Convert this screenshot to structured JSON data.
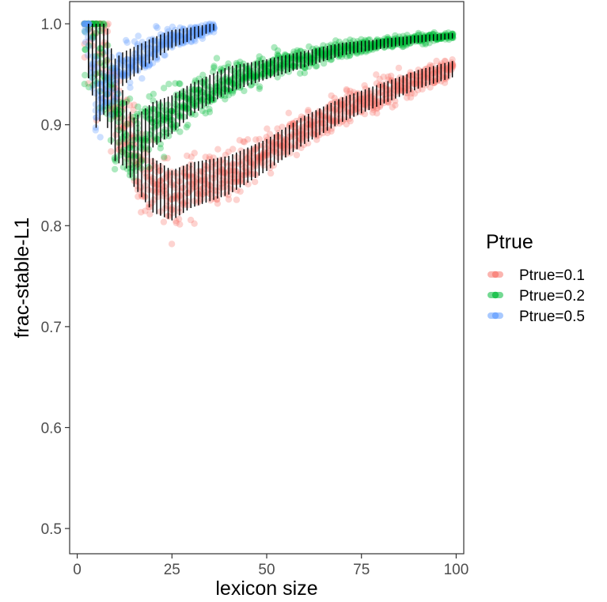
{
  "chart_data": {
    "type": "scatter",
    "xlabel": "lexicon size",
    "ylabel": "frac-stable-L1",
    "xlim": [
      -2,
      102
    ],
    "ylim": [
      0.475,
      1.022
    ],
    "x_ticks": [
      0,
      25,
      50,
      75,
      100
    ],
    "x_tick_labels": [
      "0",
      "25",
      "50",
      "75",
      "100"
    ],
    "y_ticks": [
      0.5,
      0.6,
      0.7,
      0.8,
      0.9,
      1.0
    ],
    "y_tick_labels": [
      "0.5",
      "0.6",
      "0.7",
      "0.8",
      "0.9",
      "1.0"
    ],
    "grid": false,
    "legend": {
      "title": "Ptrue",
      "placement": "right"
    },
    "series": [
      {
        "name": "Ptrue=0.1",
        "color": "#F8766D",
        "x_range": [
          2,
          99
        ],
        "center_points": [
          [
            5,
            1.0
          ],
          [
            10,
            0.92
          ],
          [
            15,
            0.87
          ],
          [
            20,
            0.84
          ],
          [
            25,
            0.83
          ],
          [
            30,
            0.84
          ],
          [
            40,
            0.85
          ],
          [
            50,
            0.87
          ],
          [
            60,
            0.895
          ],
          [
            70,
            0.915
          ],
          [
            80,
            0.93
          ],
          [
            90,
            0.945
          ],
          [
            99,
            0.955
          ]
        ],
        "spread_points": [
          [
            5,
            0.12
          ],
          [
            10,
            0.08
          ],
          [
            15,
            0.07
          ],
          [
            20,
            0.06
          ],
          [
            30,
            0.05
          ],
          [
            50,
            0.035
          ],
          [
            75,
            0.025
          ],
          [
            99,
            0.018
          ]
        ]
      },
      {
        "name": "Ptrue=0.2",
        "color": "#00BA38",
        "x_range": [
          2,
          99
        ],
        "center_points": [
          [
            5,
            1.0
          ],
          [
            10,
            0.9
          ],
          [
            15,
            0.88
          ],
          [
            20,
            0.9
          ],
          [
            25,
            0.91
          ],
          [
            30,
            0.925
          ],
          [
            40,
            0.945
          ],
          [
            50,
            0.955
          ],
          [
            60,
            0.965
          ],
          [
            70,
            0.975
          ],
          [
            80,
            0.98
          ],
          [
            90,
            0.985
          ],
          [
            99,
            0.988
          ]
        ],
        "spread_points": [
          [
            5,
            0.12
          ],
          [
            10,
            0.08
          ],
          [
            15,
            0.06
          ],
          [
            20,
            0.05
          ],
          [
            30,
            0.035
          ],
          [
            50,
            0.022
          ],
          [
            75,
            0.012
          ],
          [
            99,
            0.006
          ]
        ]
      },
      {
        "name": "Ptrue=0.5",
        "color": "#619CFF",
        "x_range": [
          2,
          36
        ],
        "center_points": [
          [
            3,
            1.0
          ],
          [
            5,
            0.93
          ],
          [
            8,
            0.94
          ],
          [
            12,
            0.955
          ],
          [
            16,
            0.965
          ],
          [
            20,
            0.975
          ],
          [
            25,
            0.985
          ],
          [
            30,
            0.99
          ],
          [
            36,
            0.997
          ]
        ],
        "spread_points": [
          [
            4,
            0.08
          ],
          [
            10,
            0.04
          ],
          [
            20,
            0.025
          ],
          [
            36,
            0.008
          ]
        ]
      }
    ],
    "error_bars": {
      "color": "#000000",
      "description_x_range": [
        3,
        99
      ]
    }
  }
}
